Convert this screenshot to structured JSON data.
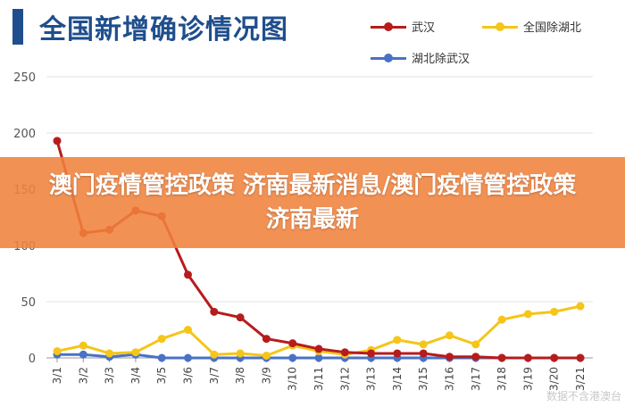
{
  "title": "全国新增确诊情况图",
  "legend": [
    {
      "name": "武汉",
      "color": "#b71c1c"
    },
    {
      "name": "全国除湖北",
      "color": "#f5c518"
    },
    {
      "name": "湖北除武汉",
      "color": "#4a72c4"
    }
  ],
  "banner": {
    "text": "澳门疫情管控政策 济南最新消息/澳门疫情管控政策 济南最新"
  },
  "watermark": "数据不含港澳台",
  "chart_data": {
    "type": "line",
    "title": "全国新增确诊情况图",
    "categories": [
      "3/1",
      "3/2",
      "3/3",
      "3/4",
      "3/5",
      "3/6",
      "3/7",
      "3/8",
      "3/9",
      "3/10",
      "3/11",
      "3/12",
      "3/13",
      "3/14",
      "3/15",
      "3/16",
      "3/17",
      "3/18",
      "3/19",
      "3/20",
      "3/21"
    ],
    "ylim": [
      0,
      250
    ],
    "yticks": [
      0,
      50,
      100,
      150,
      200,
      250
    ],
    "grid": true,
    "legend_position": "top-right",
    "series": [
      {
        "name": "武汉",
        "color": "#b71c1c",
        "values": [
          193,
          111,
          114,
          131,
          126,
          74,
          41,
          36,
          17,
          13,
          8,
          5,
          4,
          4,
          4,
          1,
          1,
          0,
          0,
          0,
          0
        ]
      },
      {
        "name": "全国除湖北",
        "color": "#f5c518",
        "values": [
          6,
          11,
          4,
          5,
          17,
          25,
          3,
          4,
          2,
          11,
          6,
          3,
          7,
          16,
          12,
          20,
          12,
          34,
          39,
          41,
          46
        ]
      },
      {
        "name": "湖北除武汉",
        "color": "#4a72c4",
        "values": [
          3,
          3,
          1,
          3,
          0,
          0,
          0,
          0,
          0,
          0,
          0,
          0,
          0,
          0,
          0,
          0,
          0,
          0,
          0,
          0,
          0
        ]
      }
    ]
  }
}
